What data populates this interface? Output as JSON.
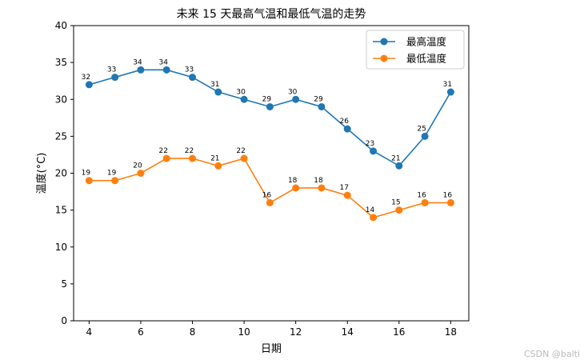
{
  "chart_data": {
    "type": "line",
    "title": "未来 15 天最高气温和最低气温的走势",
    "xlabel": "日期",
    "ylabel": "温度(°C)",
    "x": [
      4,
      5,
      6,
      7,
      8,
      9,
      10,
      11,
      12,
      13,
      14,
      15,
      16,
      17,
      18
    ],
    "xticks": [
      4,
      6,
      8,
      10,
      12,
      14,
      16,
      18
    ],
    "yticks": [
      0,
      5,
      10,
      15,
      20,
      25,
      30,
      35,
      40
    ],
    "xlim": [
      3.4,
      18.7
    ],
    "ylim": [
      0,
      40
    ],
    "grid": false,
    "legend_position": "top-right",
    "series": [
      {
        "name": "最高温度",
        "color": "#1f77b4",
        "values": [
          32,
          33,
          34,
          34,
          33,
          31,
          30,
          29,
          30,
          29,
          26,
          23,
          21,
          25,
          31
        ]
      },
      {
        "name": "最低温度",
        "color": "#ff7f0e",
        "values": [
          19,
          19,
          20,
          22,
          22,
          21,
          22,
          16,
          18,
          18,
          17,
          14,
          15,
          16,
          16
        ]
      }
    ]
  },
  "watermark": "CSDN @balti"
}
